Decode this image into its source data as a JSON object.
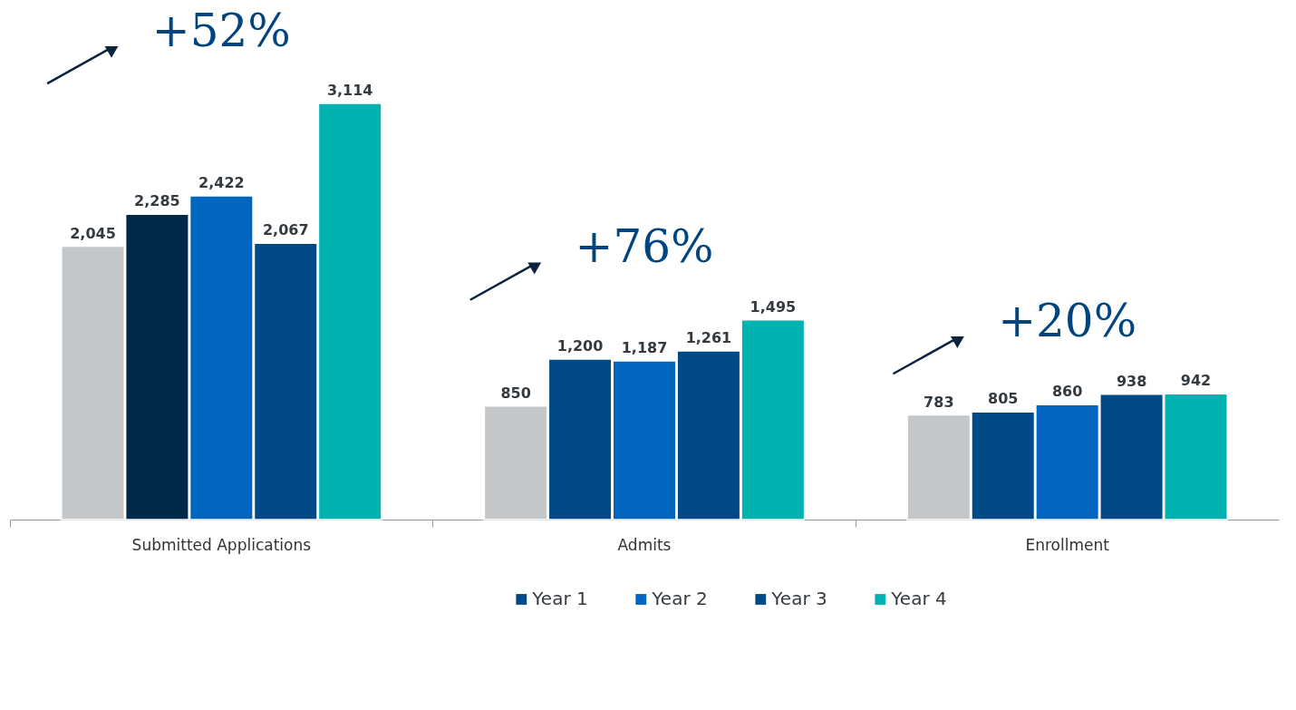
{
  "chart_data": {
    "type": "bar",
    "categories": [
      "Submitted Applications",
      "Admits",
      "Enrollment"
    ],
    "series": [
      {
        "color": "#c4c7ca",
        "values": [
          2045,
          850,
          783
        ],
        "value_labels": [
          "2,045",
          "850",
          "783"
        ]
      },
      {
        "name": "Year 1",
        "color": "#004a87",
        "colors": [
          "#00284a",
          "#004a87",
          "#004a87"
        ],
        "values": [
          2285,
          1200,
          805
        ],
        "value_labels": [
          "2,285",
          "1,200",
          "805"
        ]
      },
      {
        "name": "Year 2",
        "color": "#0066c0",
        "values": [
          2422,
          1187,
          860
        ],
        "value_labels": [
          "2,422",
          "1,187",
          "860"
        ]
      },
      {
        "name": "Year 3",
        "color": "#004a87",
        "values": [
          2067,
          1261,
          938
        ],
        "value_labels": [
          "2,067",
          "1,261",
          "938"
        ]
      },
      {
        "name": "Year 4",
        "color": "#00b2b0",
        "values": [
          3114,
          1495,
          942
        ],
        "value_labels": [
          "3,114",
          "1,495",
          "942"
        ]
      }
    ],
    "legend": "bottom",
    "annotations": [
      "+52%",
      "+76%",
      "+20%"
    ]
  }
}
